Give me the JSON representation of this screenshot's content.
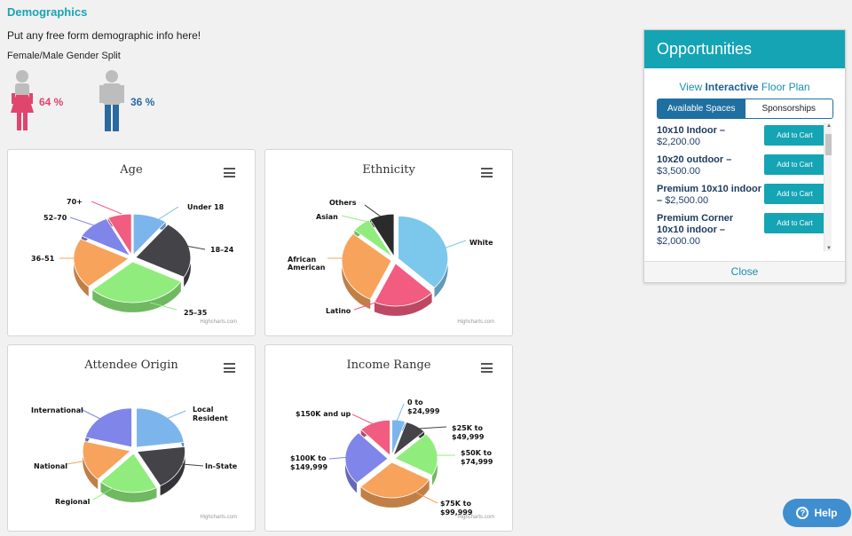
{
  "page": {
    "section_title": "Demographics",
    "intro_text": "Put any free form demographic info here!",
    "gender_split_label": "Female/Male Gender Split"
  },
  "gender": {
    "female_pct": "64 %",
    "male_pct": "36 %",
    "female_color": "#e0456e",
    "male_color": "#2a6aa0"
  },
  "charts": {
    "age": {
      "title": "Age",
      "credit": "Highcharts.com"
    },
    "ethnicity": {
      "title": "Ethnicity",
      "credit": "Highcharts.com"
    },
    "origin": {
      "title": "Attendee Origin",
      "credit": "Highcharts.com"
    },
    "income": {
      "title": "Income Range",
      "credit": "Highcharts.com"
    }
  },
  "chart_data": [
    {
      "type": "pie",
      "title": "Age",
      "categories": [
        "Under 18",
        "18-24",
        "25-35",
        "36-51",
        "52-70",
        "70+"
      ],
      "values": [
        10,
        23,
        30,
        20,
        10,
        7
      ],
      "colors": [
        "#7cb5ec",
        "#434348",
        "#90ed7d",
        "#f7a35c",
        "#8085e9",
        "#f15c80"
      ]
    },
    {
      "type": "pie",
      "title": "Ethnicity",
      "categories": [
        "White",
        "Latino",
        "African American",
        "Asian",
        "Others"
      ],
      "values": [
        37,
        20,
        29,
        6,
        8
      ],
      "colors": [
        "#7cc7ec",
        "#f15c80",
        "#f7a35c",
        "#90ed7d",
        "#2b2b2b"
      ]
    },
    {
      "type": "pie",
      "title": "Attendee Origin",
      "categories": [
        "Local Resident",
        "In-State",
        "Regional",
        "National",
        "International"
      ],
      "values": [
        23,
        19,
        20,
        17,
        21
      ],
      "colors": [
        "#7cb5ec",
        "#434348",
        "#90ed7d",
        "#f7a35c",
        "#8085e9"
      ]
    },
    {
      "type": "pie",
      "title": "Income Range",
      "categories": [
        "0 to $24,999",
        "$25K to $49,999",
        "$50K to $74,999",
        "$75K to $99,999",
        "$100K to $149,999",
        "$150K and up"
      ],
      "values": [
        5,
        8,
        20,
        30,
        25,
        12
      ],
      "colors": [
        "#7cb5ec",
        "#434348",
        "#90ed7d",
        "#f7a35c",
        "#8085e9",
        "#f15c80"
      ]
    }
  ],
  "opportunities": {
    "title": "Opportunities",
    "link_prefix": "View ",
    "link_bold": "Interactive",
    "link_suffix": " Floor Plan",
    "tabs": [
      "Available Spaces",
      "Sponsorships"
    ],
    "items": [
      {
        "name": "10x10 Indoor –",
        "price": "$2,200.00",
        "button": "Add to Cart"
      },
      {
        "name": "10x20 outdoor –",
        "price": "$3,500.00",
        "button": "Add to Cart"
      },
      {
        "name": "Premium 10x10 indoor –",
        "price": "$2,500.00",
        "button": "Add to Cart"
      },
      {
        "name": "Premium Corner 10x10 indoor –",
        "price": "$2,000.00",
        "button": "Add to Cart"
      }
    ],
    "close_label": "Close"
  },
  "help": {
    "label": "Help"
  }
}
